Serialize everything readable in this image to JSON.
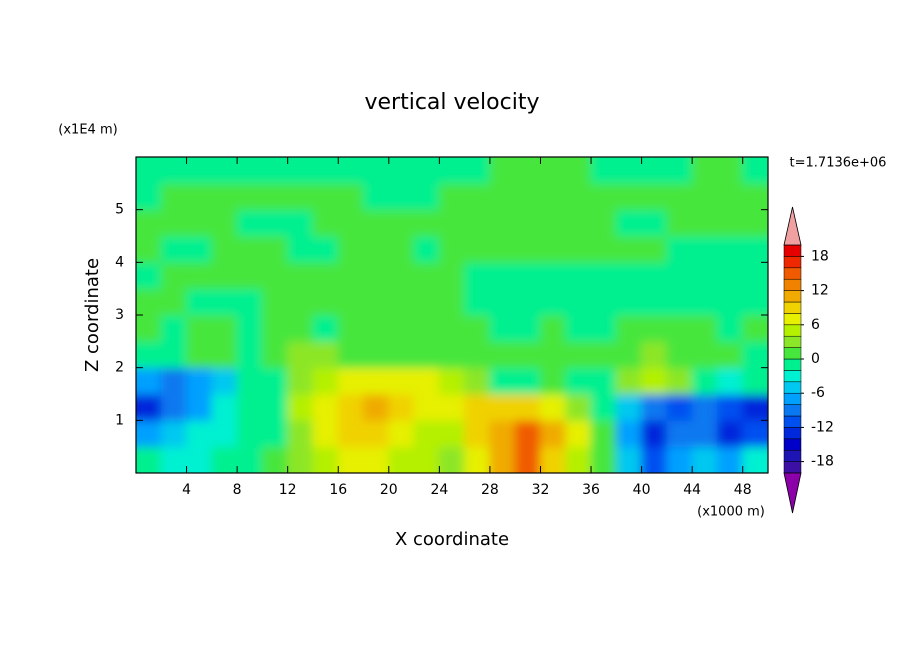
{
  "chart_data": {
    "type": "contour",
    "title": "vertical velocity",
    "x_label": "X coordinate",
    "y_label": "Z coordinate",
    "x_unit": "(x1000 m)",
    "y_unit": "(x1E4 m)",
    "annotation": "t=1.7136e+06",
    "xlim": [
      0,
      50
    ],
    "ylim": [
      0,
      6
    ],
    "xticks": [
      4,
      8,
      12,
      16,
      20,
      24,
      28,
      32,
      36,
      40,
      44,
      48
    ],
    "yticks": [
      1,
      2,
      3,
      4,
      5
    ],
    "x": [
      1,
      3,
      5,
      7,
      9,
      11,
      13,
      15,
      17,
      19,
      21,
      23,
      25,
      27,
      29,
      31,
      33,
      35,
      37,
      39,
      41,
      43,
      45,
      47,
      49
    ],
    "y": [
      0.25,
      0.75,
      1.25,
      1.75,
      2.25,
      2.75,
      3.25,
      3.75,
      4.25,
      4.75,
      5.25,
      5.75
    ],
    "z": [
      [
        -2,
        -4,
        -4,
        -2,
        -2,
        0,
        2,
        4,
        6,
        6,
        4,
        4,
        2,
        6,
        10,
        14,
        8,
        4,
        0,
        -6,
        -12,
        -8,
        -6,
        -8,
        -4
      ],
      [
        -8,
        -6,
        -4,
        -4,
        -2,
        -1,
        2,
        6,
        8,
        8,
        6,
        4,
        4,
        8,
        10,
        14,
        10,
        6,
        0,
        -8,
        -14,
        -10,
        -10,
        -14,
        -12
      ],
      [
        -14,
        -10,
        -8,
        -4,
        -2,
        -1,
        4,
        6,
        8,
        10,
        8,
        6,
        6,
        8,
        8,
        8,
        6,
        2,
        -2,
        -6,
        -10,
        -12,
        -10,
        -12,
        -14
      ],
      [
        -8,
        -10,
        -8,
        -6,
        -2,
        -1,
        2,
        4,
        6,
        6,
        6,
        6,
        4,
        2,
        -1,
        -2,
        0,
        -2,
        -1,
        2,
        4,
        2,
        -1,
        -4,
        -2
      ],
      [
        -1,
        -1,
        1,
        0,
        -1,
        0,
        2,
        2,
        1,
        1,
        1,
        1,
        0,
        0,
        1,
        1,
        1,
        1,
        0,
        1,
        2,
        1,
        1,
        0,
        -1
      ],
      [
        1,
        -1,
        1,
        1,
        -1,
        1,
        1,
        -1,
        1,
        1,
        1,
        1,
        1,
        1,
        -1,
        -1,
        1,
        -1,
        -1,
        1,
        1,
        1,
        1,
        -1,
        1
      ],
      [
        1,
        1,
        -1,
        -1,
        -1,
        1,
        1,
        1,
        1,
        1,
        1,
        1,
        1,
        -1,
        -1,
        -1,
        -1,
        -1,
        -1,
        -1,
        -1,
        -1,
        -1,
        -1,
        -1
      ],
      [
        -1,
        1,
        1,
        1,
        1,
        1,
        1,
        1,
        1,
        1,
        1,
        1,
        1,
        -1,
        -1,
        -1,
        -1,
        -1,
        -1,
        -1,
        -1,
        -1,
        -1,
        -1,
        -1
      ],
      [
        1,
        -1,
        -1,
        1,
        1,
        1,
        -1,
        -1,
        1,
        1,
        1,
        -1,
        1,
        1,
        1,
        1,
        1,
        1,
        1,
        1,
        1,
        -1,
        -1,
        -1,
        -1
      ],
      [
        1,
        1,
        1,
        1,
        -1,
        -1,
        -1,
        1,
        1,
        1,
        1,
        1,
        1,
        1,
        1,
        1,
        1,
        1,
        1,
        -1,
        -1,
        1,
        1,
        1,
        1
      ],
      [
        -1,
        1,
        1,
        1,
        1,
        1,
        1,
        1,
        1,
        -1,
        -1,
        -1,
        1,
        1,
        1,
        1,
        1,
        1,
        1,
        1,
        1,
        1,
        1,
        1,
        1
      ],
      [
        -1,
        -1,
        -1,
        -1,
        -1,
        -1,
        -1,
        -1,
        -1,
        -1,
        -1,
        -1,
        -1,
        -1,
        1,
        1,
        1,
        1,
        -1,
        -1,
        -1,
        -1,
        1,
        1,
        -1
      ]
    ],
    "levels": [
      -20,
      -18,
      -16,
      -14,
      -12,
      -10,
      -8,
      -6,
      -4,
      -2,
      0,
      2,
      4,
      6,
      8,
      10,
      12,
      14,
      16,
      18,
      20
    ],
    "colors": [
      "#3c0fa5",
      "#1e14b4",
      "#0000c8",
      "#0028dc",
      "#0050f0",
      "#0a78f0",
      "#00a0ff",
      "#00c8f0",
      "#00f0d2",
      "#00f090",
      "#46e63c",
      "#8ce628",
      "#b4f000",
      "#e6f000",
      "#f0d200",
      "#f0aa00",
      "#f08200",
      "#f05a00",
      "#f02800",
      "#e60000"
    ],
    "under_color": "#8c00aa",
    "over_color": "#f0a0a0",
    "colorbar_ticks": [
      -18,
      -12,
      -6,
      0,
      6,
      12,
      18
    ]
  }
}
